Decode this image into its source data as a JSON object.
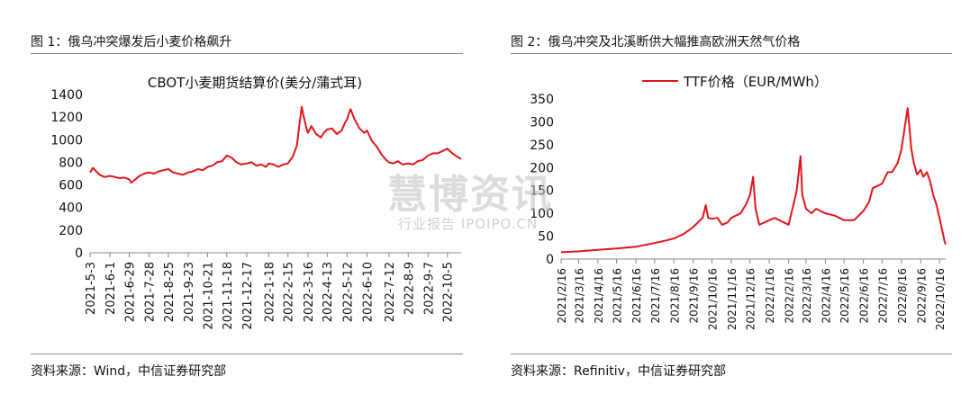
{
  "panels": {
    "left": {
      "figure_title": "图 1：俄乌冲突爆发后小麦价格飙升",
      "source": "资料来源：Wind，中信证券研究部"
    },
    "right": {
      "figure_title": "图 2：俄乌冲突及北溪断供大幅推高欧洲天然气价格",
      "source": "资料来源：Refinitiv，中信证券研究部"
    }
  },
  "watermark": {
    "main": "慧博资讯",
    "sub": "行业报告 IPOIPO.CN"
  },
  "colors": {
    "series": "#e0151b",
    "axis": "#888888",
    "text": "#111111"
  },
  "chart_data": [
    {
      "type": "line",
      "title": "CBOT小麦期货结算价(美分/蒲式耳)",
      "xlabel": "",
      "ylabel": "",
      "ylim": [
        0,
        1400
      ],
      "yticks": [
        0,
        200,
        400,
        600,
        800,
        1000,
        1200,
        1400
      ],
      "xticks": [
        "2021-5-3",
        "2021-6-1",
        "2021-6-29",
        "2021-7-28",
        "2021-8-25",
        "2021-9-23",
        "2021-10-21",
        "2021-11-18",
        "2021-12-17",
        "2022-1-18",
        "2022-2-15",
        "2022-3-16",
        "2022-4-13",
        "2022-5-12",
        "2022-6-10",
        "2022-7-12",
        "2022-8-9",
        "2022-9-7",
        "2022-10-5"
      ],
      "x_range": [
        "2021-5-3",
        "2022-10-25"
      ],
      "grid": false,
      "legend": "none",
      "series": [
        {
          "points": [
            [
              "2021-5-3",
              710
            ],
            [
              "2021-5-7",
              750
            ],
            [
              "2021-5-12",
              720
            ],
            [
              "2021-5-17",
              690
            ],
            [
              "2021-5-24",
              670
            ],
            [
              "2021-6-1",
              680
            ],
            [
              "2021-6-8",
              670
            ],
            [
              "2021-6-15",
              660
            ],
            [
              "2021-6-22",
              665
            ],
            [
              "2021-6-29",
              650
            ],
            [
              "2021-7-2",
              620
            ],
            [
              "2021-7-8",
              650
            ],
            [
              "2021-7-14",
              680
            ],
            [
              "2021-7-21",
              700
            ],
            [
              "2021-7-28",
              710
            ],
            [
              "2021-8-4",
              700
            ],
            [
              "2021-8-11",
              720
            ],
            [
              "2021-8-18",
              730
            ],
            [
              "2021-8-25",
              740
            ],
            [
              "2021-9-1",
              710
            ],
            [
              "2021-9-8",
              700
            ],
            [
              "2021-9-15",
              690
            ],
            [
              "2021-9-23",
              710
            ],
            [
              "2021-9-30",
              720
            ],
            [
              "2021-10-7",
              740
            ],
            [
              "2021-10-14",
              730
            ],
            [
              "2021-10-21",
              760
            ],
            [
              "2021-10-28",
              770
            ],
            [
              "2021-11-4",
              800
            ],
            [
              "2021-11-11",
              810
            ],
            [
              "2021-11-18",
              860
            ],
            [
              "2021-11-25",
              840
            ],
            [
              "2021-12-2",
              800
            ],
            [
              "2021-12-9",
              780
            ],
            [
              "2021-12-17",
              790
            ],
            [
              "2021-12-24",
              800
            ],
            [
              "2021-12-31",
              770
            ],
            [
              "2022-1-7",
              780
            ],
            [
              "2022-1-14",
              760
            ],
            [
              "2022-1-18",
              790
            ],
            [
              "2022-1-25",
              780
            ],
            [
              "2022-2-1",
              760
            ],
            [
              "2022-2-8",
              780
            ],
            [
              "2022-2-15",
              790
            ],
            [
              "2022-2-22",
              850
            ],
            [
              "2022-2-28",
              950
            ],
            [
              "2022-3-3",
              1100
            ],
            [
              "2022-3-7",
              1290
            ],
            [
              "2022-3-10",
              1200
            ],
            [
              "2022-3-14",
              1100
            ],
            [
              "2022-3-16",
              1060
            ],
            [
              "2022-3-21",
              1120
            ],
            [
              "2022-3-28",
              1050
            ],
            [
              "2022-4-4",
              1020
            ],
            [
              "2022-4-8",
              1060
            ],
            [
              "2022-4-13",
              1090
            ],
            [
              "2022-4-20",
              1100
            ],
            [
              "2022-4-27",
              1050
            ],
            [
              "2022-5-4",
              1080
            ],
            [
              "2022-5-9",
              1150
            ],
            [
              "2022-5-12",
              1180
            ],
            [
              "2022-5-17",
              1270
            ],
            [
              "2022-5-23",
              1180
            ],
            [
              "2022-5-30",
              1100
            ],
            [
              "2022-6-6",
              1060
            ],
            [
              "2022-6-10",
              1080
            ],
            [
              "2022-6-17",
              990
            ],
            [
              "2022-6-24",
              940
            ],
            [
              "2022-7-1",
              870
            ],
            [
              "2022-7-8",
              820
            ],
            [
              "2022-7-12",
              800
            ],
            [
              "2022-7-18",
              790
            ],
            [
              "2022-7-25",
              810
            ],
            [
              "2022-8-1",
              780
            ],
            [
              "2022-8-9",
              790
            ],
            [
              "2022-8-16",
              780
            ],
            [
              "2022-8-23",
              810
            ],
            [
              "2022-8-30",
              820
            ],
            [
              "2022-9-7",
              860
            ],
            [
              "2022-9-14",
              880
            ],
            [
              "2022-9-21",
              880
            ],
            [
              "2022-9-28",
              900
            ],
            [
              "2022-10-5",
              920
            ],
            [
              "2022-10-12",
              880
            ],
            [
              "2022-10-19",
              850
            ],
            [
              "2022-10-25",
              830
            ]
          ]
        }
      ]
    },
    {
      "type": "line",
      "title": "",
      "xlabel": "",
      "ylabel": "",
      "ylim": [
        0,
        350
      ],
      "yticks": [
        0,
        50,
        100,
        150,
        200,
        250,
        300,
        350
      ],
      "xticks": [
        "2021/2/16",
        "2021/3/16",
        "2021/4/16",
        "2021/5/16",
        "2021/6/16",
        "2021/7/16",
        "2021/8/16",
        "2021/9/16",
        "2021/10/16",
        "2021/11/16",
        "2021/12/16",
        "2022/1/16",
        "2022/2/16",
        "2022/3/16",
        "2022/4/16",
        "2022/5/16",
        "2022/6/16",
        "2022/7/16",
        "2022/8/16",
        "2022/9/16",
        "2022/10/16"
      ],
      "x_range": [
        "2021-2-16",
        "2022-10-26"
      ],
      "grid": false,
      "legend": "top",
      "series": [
        {
          "name": "TTF价格（EUR/MWh）",
          "points": [
            [
              "2021-2-16",
              15
            ],
            [
              "2021-3-16",
              17
            ],
            [
              "2021-4-16",
              20
            ],
            [
              "2021-5-16",
              23
            ],
            [
              "2021-6-16",
              27
            ],
            [
              "2021-7-16",
              35
            ],
            [
              "2021-8-1",
              40
            ],
            [
              "2021-8-16",
              45
            ],
            [
              "2021-9-1",
              55
            ],
            [
              "2021-9-16",
              70
            ],
            [
              "2021-10-1",
              90
            ],
            [
              "2021-10-6",
              118
            ],
            [
              "2021-10-10",
              90
            ],
            [
              "2021-10-16",
              88
            ],
            [
              "2021-10-25",
              90
            ],
            [
              "2021-11-1",
              75
            ],
            [
              "2021-11-10",
              80
            ],
            [
              "2021-11-16",
              90
            ],
            [
              "2021-12-1",
              100
            ],
            [
              "2021-12-10",
              120
            ],
            [
              "2021-12-16",
              140
            ],
            [
              "2021-12-21",
              180
            ],
            [
              "2021-12-25",
              110
            ],
            [
              "2021-12-31",
              75
            ],
            [
              "2022-1-16",
              85
            ],
            [
              "2022-1-25",
              90
            ],
            [
              "2022-2-1",
              85
            ],
            [
              "2022-2-16",
              75
            ],
            [
              "2022-2-24",
              120
            ],
            [
              "2022-3-1",
              150
            ],
            [
              "2022-3-7",
              225
            ],
            [
              "2022-3-10",
              140
            ],
            [
              "2022-3-16",
              110
            ],
            [
              "2022-3-25",
              100
            ],
            [
              "2022-4-1",
              110
            ],
            [
              "2022-4-16",
              100
            ],
            [
              "2022-5-1",
              95
            ],
            [
              "2022-5-16",
              85
            ],
            [
              "2022-6-1",
              85
            ],
            [
              "2022-6-16",
              105
            ],
            [
              "2022-6-25",
              125
            ],
            [
              "2022-7-1",
              155
            ],
            [
              "2022-7-16",
              165
            ],
            [
              "2022-7-25",
              190
            ],
            [
              "2022-8-1",
              190
            ],
            [
              "2022-8-10",
              210
            ],
            [
              "2022-8-16",
              240
            ],
            [
              "2022-8-26",
              330
            ],
            [
              "2022-9-1",
              240
            ],
            [
              "2022-9-5",
              210
            ],
            [
              "2022-9-10",
              185
            ],
            [
              "2022-9-16",
              195
            ],
            [
              "2022-9-20",
              180
            ],
            [
              "2022-9-26",
              190
            ],
            [
              "2022-10-1",
              170
            ],
            [
              "2022-10-6",
              140
            ],
            [
              "2022-10-11",
              120
            ],
            [
              "2022-10-16",
              90
            ],
            [
              "2022-10-21",
              60
            ],
            [
              "2022-10-24",
              40
            ],
            [
              "2022-10-26",
              32
            ]
          ]
        }
      ]
    }
  ]
}
